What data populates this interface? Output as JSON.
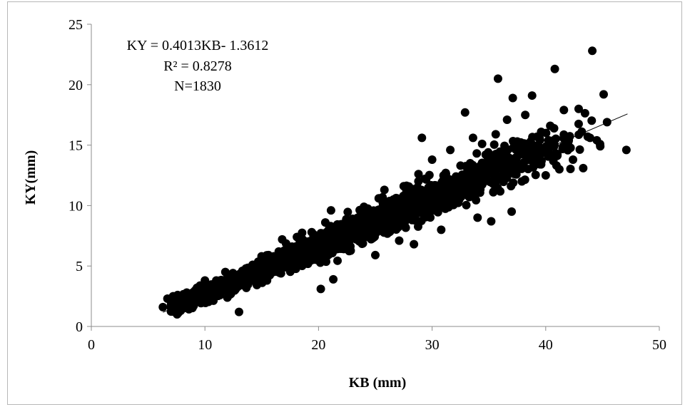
{
  "chart_data": {
    "type": "scatter",
    "xlabel": "KB (mm)",
    "ylabel": "KY(mm)",
    "xlim": [
      0,
      50
    ],
    "ylim": [
      0,
      25
    ],
    "xticks": [
      0,
      10,
      20,
      30,
      40,
      50
    ],
    "yticks": [
      0,
      5,
      10,
      15,
      20,
      25
    ],
    "grid": false,
    "marker_color": "#000000",
    "annotations": [
      "KY = 0.4013KB- 1.3612",
      "R² = 0.8278",
      "N=1830"
    ],
    "trendline": {
      "slope": 0.4013,
      "intercept": -1.3612,
      "x_range": [
        6.3,
        47.2
      ]
    },
    "points": [
      [
        6.3,
        1.6
      ],
      [
        6.7,
        2.3
      ],
      [
        7.2,
        2.5
      ],
      [
        7.6,
        2.6
      ],
      [
        7.8,
        1.8
      ],
      [
        8.1,
        2.2
      ],
      [
        8.4,
        2.8
      ],
      [
        8.9,
        2.6
      ],
      [
        9.3,
        3.2
      ],
      [
        9.7,
        2.8
      ],
      [
        10.0,
        3.8
      ],
      [
        10.5,
        3.1
      ],
      [
        11.0,
        3.8
      ],
      [
        11.3,
        2.8
      ],
      [
        11.8,
        4.5
      ],
      [
        12.2,
        3.5
      ],
      [
        12.6,
        4.0
      ],
      [
        13.0,
        1.2
      ],
      [
        13.3,
        4.6
      ],
      [
        13.8,
        4.3
      ],
      [
        14.2,
        5.1
      ],
      [
        14.7,
        4.7
      ],
      [
        15.1,
        5.3
      ],
      [
        15.6,
        5.9
      ],
      [
        16.0,
        5.0
      ],
      [
        16.5,
        6.2
      ],
      [
        16.8,
        7.2
      ],
      [
        17.3,
        6.6
      ],
      [
        17.7,
        6.1
      ],
      [
        18.1,
        7.4
      ],
      [
        18.6,
        7.2
      ],
      [
        19.0,
        6.9
      ],
      [
        19.4,
        7.8
      ],
      [
        19.8,
        7.2
      ],
      [
        20.2,
        3.1
      ],
      [
        20.6,
        8.6
      ],
      [
        21.1,
        9.6
      ],
      [
        21.3,
        3.9
      ],
      [
        21.7,
        7.7
      ],
      [
        22.2,
        8.5
      ],
      [
        22.6,
        7.9
      ],
      [
        23.0,
        8.9
      ],
      [
        23.5,
        8.2
      ],
      [
        24.0,
        9.9
      ],
      [
        24.4,
        9.5
      ],
      [
        24.8,
        8.0
      ],
      [
        25.0,
        5.9
      ],
      [
        25.3,
        10.6
      ],
      [
        25.8,
        11.3
      ],
      [
        26.2,
        9.2
      ],
      [
        26.6,
        10.5
      ],
      [
        27.1,
        7.1
      ],
      [
        27.5,
        11.6
      ],
      [
        28.0,
        10.1
      ],
      [
        28.4,
        6.8
      ],
      [
        28.8,
        12.6
      ],
      [
        29.1,
        15.6
      ],
      [
        29.3,
        11.0
      ],
      [
        29.7,
        9.9
      ],
      [
        30.0,
        13.8
      ],
      [
        30.4,
        11.3
      ],
      [
        30.8,
        8.0
      ],
      [
        31.2,
        12.7
      ],
      [
        31.6,
        14.6
      ],
      [
        32.0,
        10.7
      ],
      [
        32.5,
        13.3
      ],
      [
        32.9,
        17.7
      ],
      [
        33.3,
        11.9
      ],
      [
        33.6,
        15.6
      ],
      [
        34.0,
        9.0
      ],
      [
        34.4,
        15.1
      ],
      [
        34.8,
        12.4
      ],
      [
        35.2,
        8.7
      ],
      [
        35.6,
        15.9
      ],
      [
        35.8,
        20.5
      ],
      [
        36.2,
        13.7
      ],
      [
        36.6,
        17.1
      ],
      [
        37.0,
        9.5
      ],
      [
        37.1,
        18.9
      ],
      [
        37.5,
        15.3
      ],
      [
        37.9,
        12.0
      ],
      [
        38.2,
        17.5
      ],
      [
        38.8,
        19.1
      ],
      [
        39.2,
        14.0
      ],
      [
        39.6,
        16.1
      ],
      [
        40.0,
        12.5
      ],
      [
        40.4,
        16.6
      ],
      [
        40.8,
        21.3
      ],
      [
        41.2,
        13.0
      ],
      [
        41.6,
        17.9
      ],
      [
        42.0,
        15.3
      ],
      [
        42.4,
        13.8
      ],
      [
        42.9,
        18.0
      ],
      [
        43.3,
        13.1
      ],
      [
        43.7,
        15.7
      ],
      [
        44.1,
        22.8
      ],
      [
        44.5,
        15.4
      ],
      [
        44.8,
        14.9
      ],
      [
        45.1,
        19.2
      ],
      [
        45.4,
        16.9
      ],
      [
        47.1,
        14.6
      ]
    ]
  }
}
